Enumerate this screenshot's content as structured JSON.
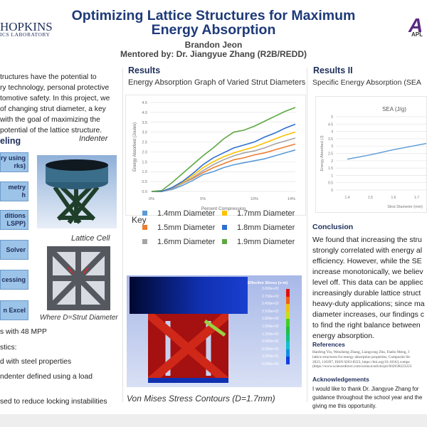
{
  "header": {
    "title_line1": "Optimizing Lattice Structures for Maximum",
    "title_line2": "Energy Absorption",
    "author": "Brandon Jeon",
    "mentor": "Mentored by: Dr. Jiangyue Zhang (R2B/REDD)",
    "logo_left_line1": "HOPKINS",
    "logo_left_line2": "ICS LABORATORY",
    "logo_right_mark": "A",
    "logo_right_text": "APL"
  },
  "left": {
    "intro": [
      "tructures have the potential to",
      "ry technology, personal protective",
      "tomotive safety. In this project, we",
      "of changing strut diameter, a key",
      "with the goal of maximizing the",
      "potential of the lattice structure."
    ],
    "modeling_heading": "eling",
    "flow": [
      [
        "ry using",
        "rks)"
      ],
      [
        "metry",
        "h"
      ],
      [
        "ditions",
        "LSPP)"
      ],
      [
        "Solver",
        ""
      ],
      [
        "cessing",
        ""
      ],
      [
        "n Excel",
        ""
      ]
    ],
    "indenter_label": "Indenter",
    "lattice_label": "Lattice Cell",
    "lattice_caption": "Where D=Strut Diameter",
    "bullets": [
      "s with 48 MPP",
      "stics:",
      "d with steel properties",
      "ndenter defined using a load",
      "sed to reduce locking instabilities"
    ]
  },
  "results": {
    "heading": "Results",
    "chart_title": "Energy Absorption Graph of Varied Strut Diameters",
    "key_label": "Key",
    "stress_caption": "Von Mises Stress Contours (D=1.7mm)",
    "stress_legend_title": "Effective Stress (v-m)",
    "stress_legend_values": [
      "3.000e+02",
      "2.700e+02",
      "2.400e+02",
      "2.100e+02",
      "1.800e+02",
      "1.500e+02",
      "1.200e+02",
      "9.000e+01",
      "6.000e+01",
      "3.000e+01",
      "0.000e+00"
    ],
    "stress_colors": [
      "#e01010",
      "#f06010",
      "#f0c010",
      "#c8e010",
      "#40d020",
      "#20c040",
      "#10c080",
      "#10c0d0",
      "#1090e0",
      "#1040e0",
      "#0000d0"
    ]
  },
  "results2": {
    "heading": "Results II",
    "chart_title": "Specific Energy Absorption (SEA"
  },
  "conclusion": {
    "heading": "Conclusion",
    "lines": [
      "We found that increasing the stru",
      "strongly correlated with energy al",
      "efficiency. However, while the SE",
      "increase monotonically, we believ",
      "level off. This data can be appliec",
      "increasingly durable lattice struct",
      "heavy-duty applications; since ma",
      "diameter increases, our findings c",
      "to find the right balance between",
      "energy absorption."
    ]
  },
  "references": {
    "heading": "References",
    "lines": [
      "Hanfeng Yin, Wenzheng Zhang, Liangcong Zhu, Fanbo Meng, J",
      "lattice structures for energy absorption properties, Composite Str",
      "2023, 116397, ISSN 0263-8223, https://doi.org/10.1016/j.comps",
      "(https://www.sciencedirect.com/science/article/pii/S02638223223"
    ]
  },
  "acknowledgements": {
    "heading": "Acknowledgements",
    "lines": [
      "I would like to thank Dr. Jiangyue Zhang for",
      "guidance throughout the school year and the",
      "giving me this opportunity."
    ]
  },
  "chart_data": [
    {
      "type": "line",
      "title": "",
      "xlabel": "Percent Compression",
      "ylabel": "Energy Absorbed (Joules)",
      "xlim": [
        0,
        14
      ],
      "ylim": [
        0,
        4.5
      ],
      "x_ticks": [
        "0%",
        "5%",
        "10%",
        "14%"
      ],
      "y_ticks": [
        "0.0",
        "0.5",
        "1.0",
        "1.5",
        "2.0",
        "2.5",
        "3.0",
        "3.5",
        "4.0",
        "4.5"
      ],
      "grid": true,
      "legend": "below",
      "x": [
        0,
        1,
        2,
        3,
        4,
        5,
        6,
        7,
        8,
        9,
        10,
        11,
        12,
        13,
        14
      ],
      "series": [
        {
          "name": "1.4mm Diameter",
          "color": "#5b9bd5",
          "values": [
            0,
            0,
            0.1,
            0.3,
            0.55,
            0.85,
            1.0,
            1.2,
            1.35,
            1.45,
            1.55,
            1.65,
            1.8,
            1.95,
            2.1
          ]
        },
        {
          "name": "1.5mm Diameter",
          "color": "#ed7d31",
          "values": [
            0,
            0,
            0.15,
            0.4,
            0.65,
            0.95,
            1.2,
            1.4,
            1.6,
            1.7,
            1.85,
            1.95,
            2.1,
            2.25,
            2.4
          ]
        },
        {
          "name": "1.6mm Diameter",
          "color": "#a5a5a5",
          "values": [
            0,
            0,
            0.15,
            0.4,
            0.7,
            1.05,
            1.35,
            1.6,
            1.8,
            1.95,
            2.05,
            2.2,
            2.4,
            2.55,
            2.7
          ]
        },
        {
          "name": "1.7mm Diameter",
          "color": "#ffc000",
          "values": [
            0,
            0,
            0.2,
            0.45,
            0.8,
            1.2,
            1.5,
            1.75,
            1.95,
            2.1,
            2.25,
            2.45,
            2.65,
            2.85,
            3.0
          ]
        },
        {
          "name": "1.8mm Diameter",
          "color": "#2f6fd0",
          "values": [
            0,
            0,
            0.2,
            0.5,
            0.9,
            1.35,
            1.7,
            1.95,
            2.2,
            2.35,
            2.5,
            2.75,
            2.95,
            3.2,
            3.4
          ]
        },
        {
          "name": "1.9mm Diameter",
          "color": "#5ea843",
          "values": [
            0,
            0.05,
            0.45,
            0.9,
            1.35,
            1.8,
            2.2,
            2.65,
            3.0,
            3.1,
            3.3,
            3.55,
            3.8,
            4.05,
            4.25
          ]
        }
      ]
    },
    {
      "type": "line",
      "title": "SEA (J/g)",
      "xlabel": "Strut Diameter (mm)",
      "ylabel": "Energy Absorbed (J)",
      "ylim": [
        0,
        5
      ],
      "y_ticks": [
        "0",
        "0.5",
        "1",
        "1.5",
        "2",
        "2.5",
        "3",
        "3.5",
        "4",
        "4.5",
        "5"
      ],
      "x_ticks": [
        "1.4",
        "1.5",
        "1.6",
        "1.7"
      ],
      "grid": true,
      "x": [
        1.4,
        1.5,
        1.6,
        1.7,
        1.8
      ],
      "series": [
        {
          "color": "#5b9bd5",
          "values": [
            2.1,
            2.4,
            2.75,
            3.05,
            3.35
          ]
        }
      ]
    }
  ]
}
